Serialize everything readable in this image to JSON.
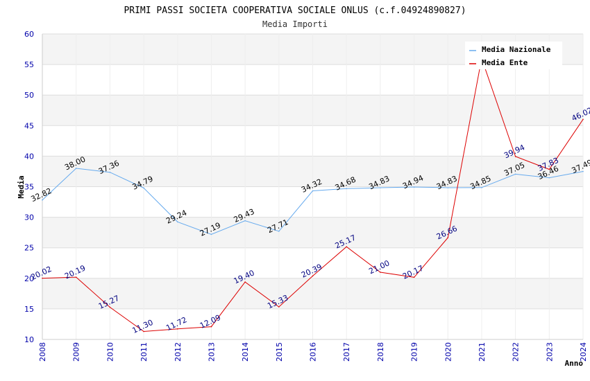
{
  "chart_data": {
    "type": "line",
    "title": "PRIMI PASSI SOCIETA COOPERATIVA SOCIALE ONLUS (c.f.04924890827)",
    "subtitle": "Media Importi",
    "xlabel": "Anno",
    "ylabel": "Media",
    "ylim": [
      10,
      60
    ],
    "yticks": [
      10,
      15,
      20,
      25,
      30,
      35,
      40,
      45,
      50,
      55,
      60
    ],
    "x": [
      "2008",
      "2009",
      "2010",
      "2011",
      "2012",
      "2013",
      "2014",
      "2015",
      "2016",
      "2017",
      "2018",
      "2019",
      "2020",
      "2021",
      "2022",
      "2023",
      "2024"
    ],
    "grid": true,
    "legend": "top-right",
    "series": [
      {
        "name": "Media Nazionale",
        "color": "#66aaee",
        "values": [
          32.82,
          38.0,
          37.36,
          34.79,
          29.24,
          27.19,
          29.43,
          27.71,
          34.32,
          34.68,
          34.83,
          34.94,
          34.83,
          34.85,
          37.05,
          36.46,
          37.49
        ],
        "labels": [
          "32.82",
          "38.00",
          "37.36",
          "34.79",
          "29.24",
          "27.19",
          "29.43",
          "27.71",
          "34.32",
          "34.68",
          "34.83",
          "34.94",
          "34.83",
          "34.85",
          "37.05",
          "36.46",
          "37.49"
        ]
      },
      {
        "name": "Media Ente",
        "color": "#dd0000",
        "values": [
          20.02,
          20.19,
          15.27,
          11.3,
          11.72,
          12.09,
          19.4,
          15.33,
          20.39,
          25.17,
          21.0,
          20.17,
          26.66,
          56.0,
          39.94,
          37.83,
          46.02
        ],
        "labels": [
          "20.02",
          "20.19",
          "15.27",
          "11.30",
          "11.72",
          "12.09",
          "19.40",
          "15.33",
          "20.39",
          "25.17",
          "21.00",
          "20.17",
          "26.66",
          "",
          "39.94",
          "37.83",
          "46.02"
        ]
      }
    ]
  }
}
